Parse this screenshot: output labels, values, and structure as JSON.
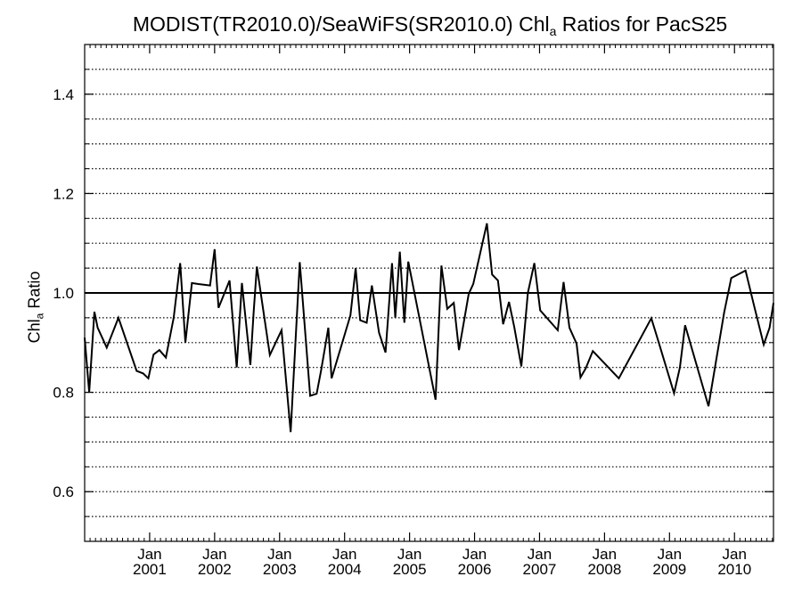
{
  "chart_data": {
    "type": "line",
    "title": {
      "prefix": "MODIST(TR2010.0)/SeaWiFS(SR2010.0)  Chl",
      "subscript": "a",
      "suffix": " Ratios for PacS25"
    },
    "ylabel": {
      "prefix": "Chl",
      "subscript": "a",
      "suffix": " Ratio"
    },
    "xlim": [
      2000.0,
      2010.6
    ],
    "ylim": [
      0.5,
      1.5
    ],
    "yticks": [
      {
        "value": 0.6,
        "label": "0.6"
      },
      {
        "value": 0.8,
        "label": "0.8"
      },
      {
        "value": 1.0,
        "label": "1.0"
      },
      {
        "value": 1.2,
        "label": "1.2"
      },
      {
        "value": 1.4,
        "label": "1.4"
      }
    ],
    "xticks": [
      {
        "value": 2001,
        "month": "Jan",
        "year": "2001"
      },
      {
        "value": 2002,
        "month": "Jan",
        "year": "2002"
      },
      {
        "value": 2003,
        "month": "Jan",
        "year": "2003"
      },
      {
        "value": 2004,
        "month": "Jan",
        "year": "2004"
      },
      {
        "value": 2005,
        "month": "Jan",
        "year": "2005"
      },
      {
        "value": 2006,
        "month": "Jan",
        "year": "2006"
      },
      {
        "value": 2007,
        "month": "Jan",
        "year": "2007"
      },
      {
        "value": 2008,
        "month": "Jan",
        "year": "2008"
      },
      {
        "value": 2009,
        "month": "Jan",
        "year": "2009"
      },
      {
        "value": 2010,
        "month": "Jan",
        "year": "2010"
      }
    ],
    "grid": "dotted horizontal",
    "reference_line": 1.0,
    "series": [
      {
        "color": "#000000",
        "x": [
          2000.0,
          2000.07,
          2000.15,
          2000.2,
          2000.34,
          2000.52,
          2000.8,
          2000.9,
          2000.98,
          2001.06,
          2001.15,
          2001.25,
          2001.37,
          2001.47,
          2001.55,
          2001.65,
          2001.75,
          2001.93,
          2002.0,
          2002.06,
          2002.23,
          2002.34,
          2002.42,
          2002.55,
          2002.6,
          2002.65,
          2002.85,
          2003.03,
          2003.17,
          2003.31,
          2003.47,
          2003.57,
          2003.64,
          2003.75,
          2003.8,
          2004.09,
          2004.17,
          2004.24,
          2004.34,
          2004.42,
          2004.53,
          2004.63,
          2004.73,
          2004.78,
          2004.85,
          2004.92,
          2004.98,
          2005.4,
          2005.49,
          2005.58,
          2005.68,
          2005.76,
          2005.84,
          2005.91,
          2005.98,
          2006.19,
          2006.27,
          2006.36,
          2006.44,
          2006.53,
          2006.61,
          2006.72,
          2006.82,
          2006.92,
          2007.01,
          2007.28,
          2007.37,
          2007.46,
          2007.57,
          2007.63,
          2007.71,
          2007.82,
          2008.22,
          2008.72,
          2008.8,
          2009.07,
          2009.16,
          2009.24,
          2009.6,
          2009.84,
          2009.95,
          2010.17,
          2010.3,
          2010.45,
          2010.54,
          2010.6
        ],
        "y": [
          0.91,
          0.8,
          0.962,
          0.93,
          0.89,
          0.95,
          0.843,
          0.838,
          0.828,
          0.876,
          0.885,
          0.87,
          0.95,
          1.06,
          0.9,
          1.02,
          1.018,
          1.015,
          1.088,
          0.97,
          1.025,
          0.85,
          1.02,
          0.855,
          0.96,
          1.053,
          0.875,
          0.925,
          0.72,
          1.062,
          0.793,
          0.797,
          0.845,
          0.93,
          0.828,
          0.955,
          1.05,
          0.945,
          0.94,
          1.015,
          0.92,
          0.88,
          1.06,
          0.95,
          1.083,
          0.94,
          1.063,
          0.785,
          1.055,
          0.968,
          0.98,
          0.885,
          0.945,
          0.998,
          1.018,
          1.14,
          1.037,
          1.025,
          0.937,
          0.982,
          0.932,
          0.852,
          1.0,
          1.06,
          0.965,
          0.925,
          1.022,
          0.93,
          0.898,
          0.83,
          0.848,
          0.883,
          0.828,
          0.949,
          0.915,
          0.798,
          0.85,
          0.935,
          0.772,
          0.96,
          1.03,
          1.045,
          0.975,
          0.896,
          0.93,
          0.98
        ]
      }
    ]
  }
}
